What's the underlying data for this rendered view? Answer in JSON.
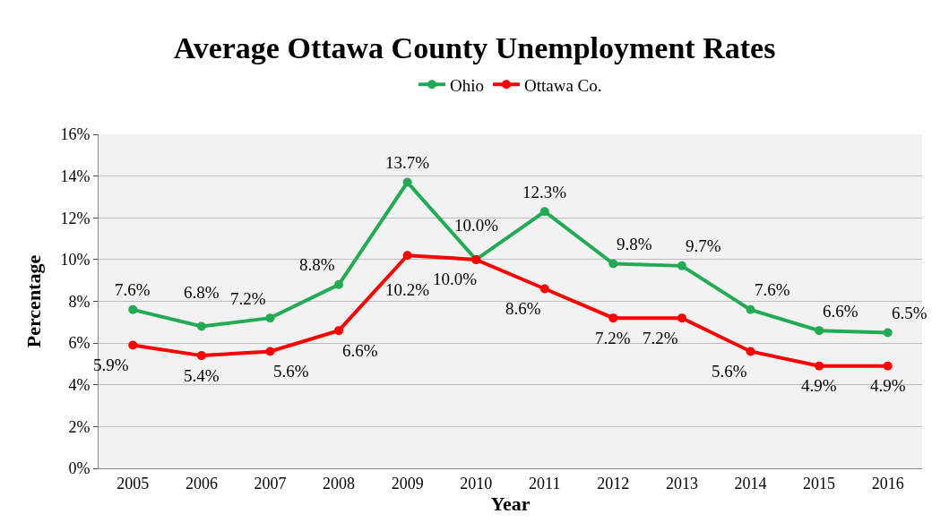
{
  "chart_data": {
    "type": "line",
    "title": "Average Ottawa County Unemployment Rates",
    "xlabel": "Year",
    "ylabel": "Percentage",
    "categories": [
      "2005",
      "2006",
      "2007",
      "2008",
      "2009",
      "2010",
      "2011",
      "2012",
      "2013",
      "2014",
      "2015",
      "2016"
    ],
    "series": [
      {
        "name": "Ohio",
        "color": "#22aa55",
        "values": [
          7.6,
          6.8,
          7.2,
          8.8,
          13.7,
          10.0,
          12.3,
          9.8,
          9.7,
          7.6,
          6.6,
          6.5
        ],
        "value_labels": [
          "7.6%",
          "6.8%",
          "7.2%",
          "8.8%",
          "13.7%",
          "10.0%",
          "12.3%",
          "9.8%",
          "9.7%",
          "7.6%",
          "6.6%",
          "6.5%"
        ]
      },
      {
        "name": "Ottawa Co.",
        "color": "#ff0000",
        "values": [
          5.9,
          5.4,
          5.6,
          6.6,
          10.2,
          10.0,
          8.6,
          7.2,
          7.2,
          5.6,
          4.9,
          4.9
        ],
        "value_labels": [
          "5.9%",
          "5.4%",
          "5.6%",
          "6.6%",
          "10.2%",
          "10.0%",
          "8.6%",
          "7.2%",
          "7.2%",
          "5.6%",
          "4.9%",
          "4.9%"
        ]
      }
    ],
    "ylim": [
      0,
      16
    ],
    "yticks": [
      {
        "value": 0,
        "label": "0%"
      },
      {
        "value": 2,
        "label": "2%"
      },
      {
        "value": 4,
        "label": "4%"
      },
      {
        "value": 6,
        "label": "6%"
      },
      {
        "value": 8,
        "label": "8%"
      },
      {
        "value": 10,
        "label": "10%"
      },
      {
        "value": 12,
        "label": "12%"
      },
      {
        "value": 14,
        "label": "14%"
      },
      {
        "value": 16,
        "label": "16%"
      }
    ],
    "grid": "y",
    "legend": "top",
    "marker": "circle",
    "line_style": "solid"
  }
}
